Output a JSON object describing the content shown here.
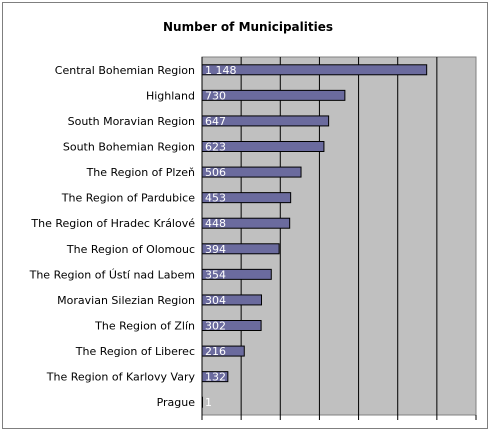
{
  "chart_data": {
    "type": "bar",
    "orientation": "horizontal",
    "title": "Number of Municipalities",
    "xlabel": "",
    "ylabel": "",
    "xlim": [
      0,
      1400
    ],
    "grid": true,
    "legend": "none",
    "categories": [
      "Central Bohemian Region",
      "Highland",
      "South Moravian Region",
      "South Bohemian Region",
      "The Region of Plzeň",
      "The Region of Pardubice",
      "The Region of Hradec Králové",
      "The Region of Olomouc",
      "The Region of Ústí nad Labem",
      "Moravian Silezian Region",
      "The Region of Zlín",
      "The Region of Liberec",
      "The Region of Karlovy Vary",
      "Prague"
    ],
    "values": [
      1148,
      730,
      647,
      623,
      506,
      453,
      448,
      394,
      354,
      304,
      302,
      216,
      132,
      1
    ],
    "value_labels": [
      "1 148",
      "730",
      "647",
      "623",
      "506",
      "453",
      "448",
      "394",
      "354",
      "304",
      "302",
      "216",
      "132",
      "1"
    ]
  },
  "colors": {
    "plot_background": "#c0c0c0",
    "bar_fill": "#6b6b9e",
    "bar_border": "#000000",
    "gridline": "#000000",
    "value_label": "#ffffff"
  }
}
